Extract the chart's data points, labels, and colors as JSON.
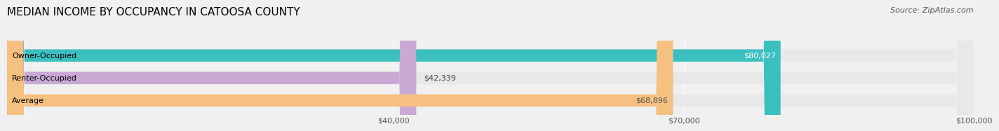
{
  "title": "MEDIAN INCOME BY OCCUPANCY IN CATOOSA COUNTY",
  "source": "Source: ZipAtlas.com",
  "categories": [
    "Owner-Occupied",
    "Renter-Occupied",
    "Average"
  ],
  "values": [
    80027,
    42339,
    68896
  ],
  "bar_colors": [
    "#3bbfbf",
    "#c9a8d4",
    "#f5c080"
  ],
  "label_colors": [
    "#ffffff",
    "#555555",
    "#555555"
  ],
  "value_labels": [
    "$80,027",
    "$42,339",
    "$68,896"
  ],
  "xlim": [
    0,
    100000
  ],
  "xticks": [
    40000,
    70000,
    100000
  ],
  "xtick_labels": [
    "$40,000",
    "$70,000",
    "$100,000"
  ],
  "background_color": "#f0f0f0",
  "bar_background_color": "#e8e8e8",
  "title_fontsize": 11,
  "source_fontsize": 8,
  "bar_label_fontsize": 8,
  "value_label_fontsize": 8,
  "tick_fontsize": 8,
  "bar_height": 0.55
}
